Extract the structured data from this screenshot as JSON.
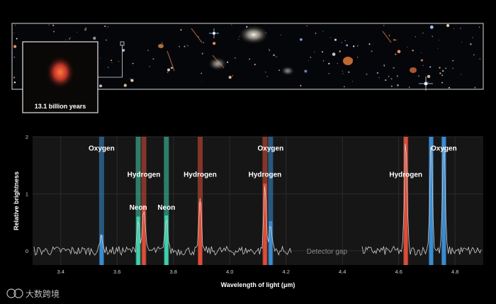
{
  "image_panel": {
    "inset_caption": "13.1 billion years"
  },
  "watermark": {
    "text": "大数跨境"
  },
  "chart_data": {
    "type": "line",
    "title": "",
    "xlabel": "Wavelength of light (μm)",
    "ylabel": "Relative brightness",
    "xlim": [
      3.3,
      4.9
    ],
    "ylim": [
      -0.25,
      2.0
    ],
    "x_ticks": [
      3.4,
      3.6,
      3.8,
      4.0,
      4.2,
      4.4,
      4.6,
      4.8
    ],
    "y_ticks": [
      0,
      1,
      2
    ],
    "grid": true,
    "detector_gap": {
      "label": "Detector gap",
      "range": [
        4.22,
        4.47
      ]
    },
    "emission_lines": [
      {
        "label": "Oxygen",
        "x": 3.545,
        "peak": 0.28,
        "color": "#3b8fd6",
        "label_y": 1.76
      },
      {
        "label": "Neon",
        "x": 3.675,
        "peak": 0.6,
        "color": "#3fd6b0",
        "label_y": 0.72
      },
      {
        "label": "Hydrogen",
        "x": 3.695,
        "peak": 0.8,
        "color": "#e0503a",
        "label_y": 1.3
      },
      {
        "label": "Neon",
        "x": 3.775,
        "peak": 0.62,
        "color": "#3fd6b0",
        "label_y": 0.72
      },
      {
        "label": "Hydrogen",
        "x": 3.895,
        "peak": 0.85,
        "color": "#e0503a",
        "label_y": 1.3
      },
      {
        "label": "Hydrogen",
        "x": 4.125,
        "peak": 1.18,
        "color": "#e0503a",
        "label_y": 1.3
      },
      {
        "label": "Oxygen",
        "x": 4.145,
        "peak": 0.52,
        "color": "#3b8fd6",
        "label_y": 1.76
      },
      {
        "label": "Hydrogen",
        "x": 4.625,
        "peak": 2.0,
        "color": "#e0503a",
        "label_y": 1.3
      },
      {
        "label": "",
        "x": 4.715,
        "peak": 2.0,
        "color": "#3b8fd6",
        "label_y": null
      },
      {
        "label": "Oxygen",
        "x": 4.76,
        "peak": 2.0,
        "color": "#3b8fd6",
        "label_y": 1.76
      }
    ]
  }
}
